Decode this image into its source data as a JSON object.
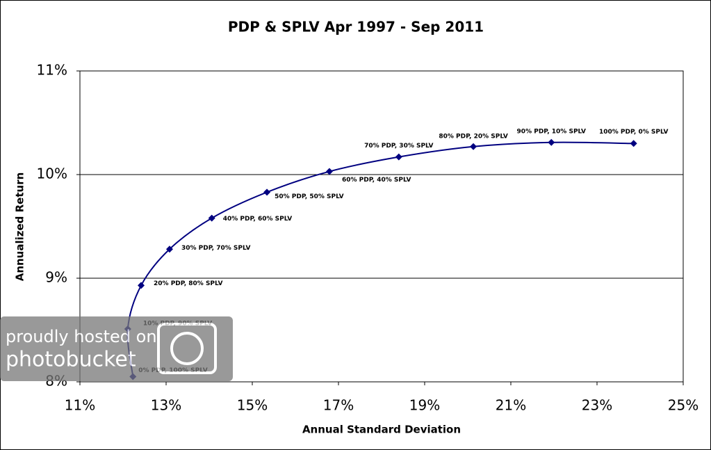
{
  "chart_data": {
    "type": "scatter",
    "title": "PDP & SPLV  Apr 1997 - Sep 2011",
    "x_label": "Annual Standard Deviation",
    "y_label": "Annualized Return",
    "x": [
      12.23,
      12.11,
      12.42,
      13.08,
      14.06,
      15.34,
      16.79,
      18.4,
      20.13,
      21.94,
      23.85
    ],
    "values": [
      8.05,
      8.51,
      8.93,
      9.28,
      9.58,
      9.83,
      10.03,
      10.17,
      10.27,
      10.31,
      10.3
    ],
    "point_labels": [
      "0% PDP, 100% SPLV",
      "10% PDP, 90% SPLV",
      "20% PDP, 80% SPLV",
      "30% PDP, 70% SPLV",
      "40% PDP, 60% SPLV",
      "50% PDP, 50% SPLV",
      "60% PDP, 40% SPLV",
      "70% PDP, 30% SPLV",
      "80% PDP, 20% SPLV",
      "90% PDP, 10% SPLV",
      "100% PDP, 0% SPLV"
    ],
    "color": "#000080",
    "xlim": [
      11,
      25
    ],
    "xticks": [
      {
        "value": 11,
        "label": "11%"
      },
      {
        "value": 13,
        "label": "13%"
      },
      {
        "value": 15,
        "label": "15%"
      },
      {
        "value": 17,
        "label": "17%"
      },
      {
        "value": 19,
        "label": "19%"
      },
      {
        "value": 21,
        "label": "21%"
      },
      {
        "value": 23,
        "label": "23%"
      },
      {
        "value": 25,
        "label": "25%"
      }
    ],
    "ylim": [
      8,
      11
    ],
    "yticks": [
      {
        "value": 8,
        "label": "8%"
      },
      {
        "value": 9,
        "label": "9%"
      },
      {
        "value": 10,
        "label": "10%"
      },
      {
        "value": 11,
        "label": "11%"
      }
    ],
    "grid": true
  },
  "watermark": {
    "line1": "proudly hosted on",
    "line2": "photobucket"
  }
}
